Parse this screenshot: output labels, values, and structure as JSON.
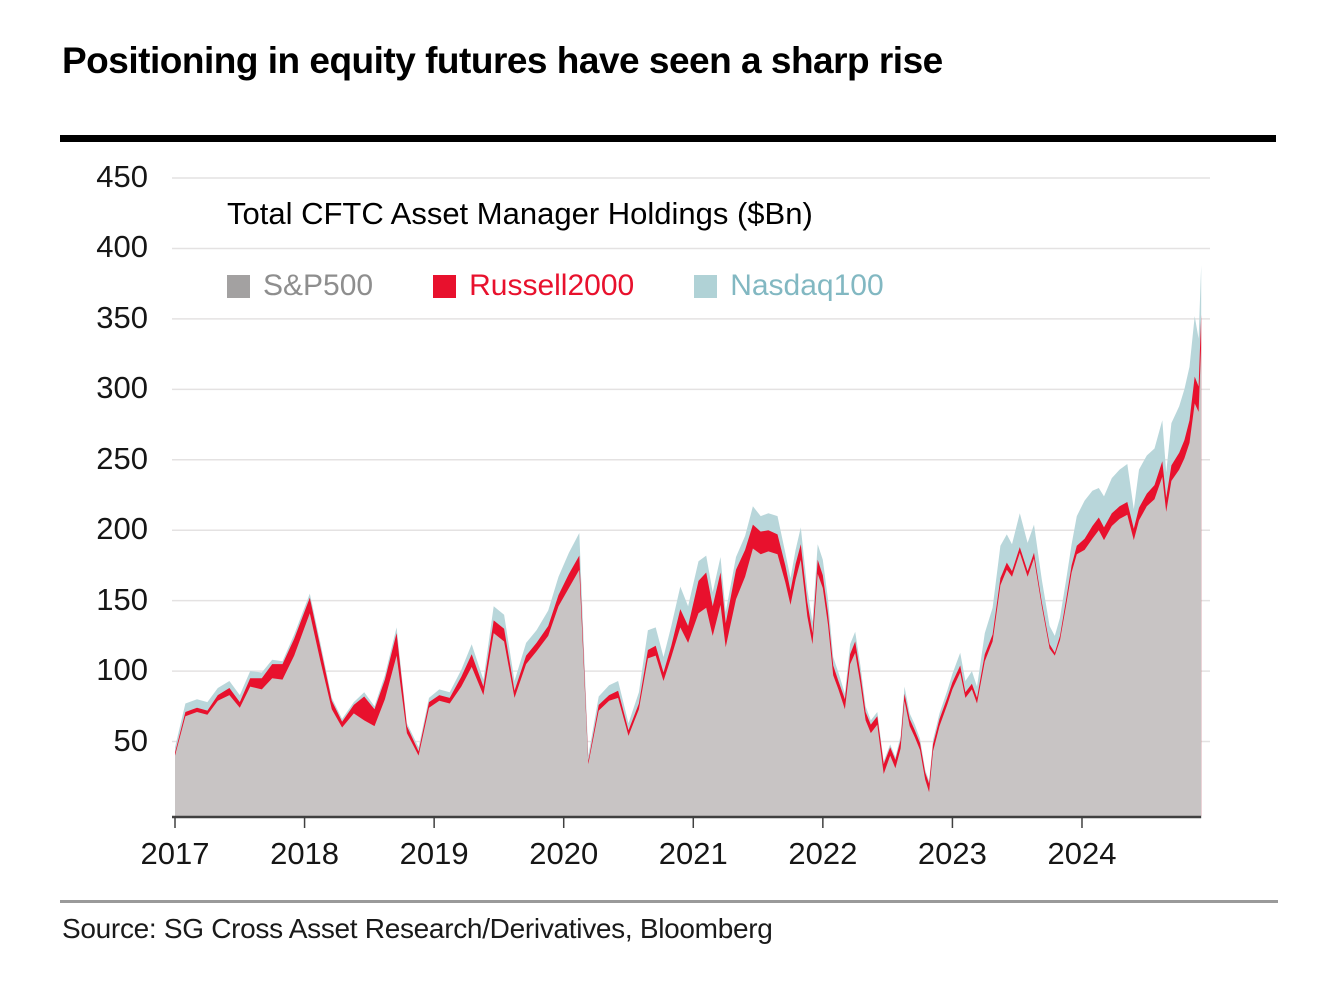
{
  "title": "Positioning in equity futures have seen a sharp rise",
  "source_note": "Source: SG Cross Asset Research/Derivatives, Bloomberg",
  "chart_data": {
    "type": "area",
    "stacked": true,
    "title": "Total CFTC Asset Manager Holdings ($Bn)",
    "unit": "$Bn",
    "grid": "horizontal",
    "legend_position": "top-left-inside",
    "ylim": [
      0,
      450
    ],
    "xlim": [
      2017.0,
      2025.0
    ],
    "y_ticks": [
      450,
      400,
      350,
      300,
      250,
      200,
      150,
      100,
      50
    ],
    "x_ticks": [
      2017,
      2018,
      2019,
      2020,
      2021,
      2022,
      2023,
      2024
    ],
    "x": [
      2017.0,
      2017.08,
      2017.17,
      2017.25,
      2017.33,
      2017.42,
      2017.5,
      2017.58,
      2017.67,
      2017.75,
      2017.83,
      2017.92,
      2018.04,
      2018.12,
      2018.21,
      2018.29,
      2018.38,
      2018.46,
      2018.54,
      2018.62,
      2018.71,
      2018.79,
      2018.88,
      2018.96,
      2019.04,
      2019.12,
      2019.21,
      2019.29,
      2019.38,
      2019.46,
      2019.54,
      2019.62,
      2019.71,
      2019.79,
      2019.88,
      2019.96,
      2020.04,
      2020.12,
      2020.19,
      2020.27,
      2020.35,
      2020.42,
      2020.5,
      2020.58,
      2020.65,
      2020.71,
      2020.77,
      2020.83,
      2020.9,
      2020.96,
      2021.04,
      2021.1,
      2021.15,
      2021.21,
      2021.25,
      2021.33,
      2021.4,
      2021.46,
      2021.52,
      2021.58,
      2021.65,
      2021.71,
      2021.75,
      2021.79,
      2021.83,
      2021.88,
      2021.92,
      2021.96,
      2022.0,
      2022.04,
      2022.08,
      2022.12,
      2022.17,
      2022.21,
      2022.25,
      2022.29,
      2022.33,
      2022.37,
      2022.42,
      2022.47,
      2022.52,
      2022.56,
      2022.6,
      2022.63,
      2022.67,
      2022.71,
      2022.75,
      2022.79,
      2022.82,
      2022.85,
      2022.9,
      2022.96,
      2023.0,
      2023.06,
      2023.1,
      2023.15,
      2023.19,
      2023.25,
      2023.31,
      2023.37,
      2023.42,
      2023.46,
      2023.52,
      2023.58,
      2023.63,
      2023.69,
      2023.75,
      2023.79,
      2023.83,
      2023.88,
      2023.92,
      2023.96,
      2024.02,
      2024.08,
      2024.13,
      2024.17,
      2024.23,
      2024.29,
      2024.35,
      2024.4,
      2024.44,
      2024.5,
      2024.56,
      2024.62,
      2024.65,
      2024.69,
      2024.75,
      2024.79,
      2024.83,
      2024.87,
      2024.9,
      2024.92
    ],
    "series": [
      {
        "name": "S&P500",
        "fill": "#c8c4c4",
        "swatch_color": "#a3a1a1",
        "label_color": "#8e8e8e",
        "values": [
          40,
          68,
          71,
          69,
          79,
          83,
          74,
          89,
          87,
          95,
          94,
          111,
          141,
          108,
          73,
          60,
          70,
          65,
          61,
          80,
          111,
          56,
          40,
          74,
          79,
          77,
          89,
          103,
          83,
          127,
          121,
          81,
          105,
          114,
          125,
          146,
          159,
          172,
          34,
          72,
          79,
          81,
          54,
          73,
          109,
          111,
          93,
          110,
          131,
          120,
          141,
          145,
          125,
          147,
          117,
          151,
          167,
          187,
          183,
          185,
          183,
          163,
          147,
          165,
          179,
          139,
          119,
          169,
          159,
          133,
          97,
          87,
          73,
          105,
          113,
          91,
          65,
          56,
          62,
          27,
          40,
          31,
          45,
          79,
          61,
          53,
          44,
          23,
          14,
          43,
          61,
          76,
          87,
          99,
          81,
          87,
          77,
          107,
          121,
          161,
          172,
          167,
          184,
          167,
          180,
          146,
          116,
          111,
          122,
          148,
          170,
          183,
          186,
          194,
          200,
          193,
          203,
          208,
          211,
          193,
          207,
          217,
          222,
          238,
          213,
          235,
          243,
          251,
          262,
          290,
          284,
          332
        ]
      },
      {
        "name": "Russell2000",
        "fill": "#e8112d",
        "swatch_color": "#e8112d",
        "label_color": "#e8112d",
        "values": [
          2,
          3,
          3,
          3,
          4,
          5,
          4,
          6,
          8,
          10,
          11,
          12,
          11,
          10,
          6,
          4,
          6,
          17,
          12,
          14,
          16,
          5,
          3,
          4,
          4,
          4,
          7,
          9,
          6,
          9,
          9,
          5,
          6,
          6,
          7,
          8,
          10,
          10,
          2,
          4,
          4,
          5,
          4,
          4,
          6,
          7,
          6,
          8,
          13,
          12,
          23,
          25,
          21,
          23,
          17,
          21,
          19,
          17,
          16,
          15,
          14,
          12,
          10,
          11,
          11,
          10,
          8,
          10,
          9,
          8,
          7,
          6,
          7,
          7,
          8,
          7,
          6,
          6,
          6,
          7,
          6,
          6,
          6,
          5,
          5,
          5,
          5,
          5,
          6,
          5,
          5,
          5,
          5,
          5,
          4,
          4,
          4,
          5,
          5,
          5,
          5,
          4,
          4,
          4,
          4,
          3,
          3,
          2,
          3,
          4,
          5,
          6,
          8,
          9,
          9,
          9,
          9,
          9,
          9,
          8,
          9,
          9,
          10,
          11,
          10,
          11,
          12,
          13,
          16,
          19,
          18,
          21
        ]
      },
      {
        "name": "Nasdaq100",
        "fill": "#b8d6da",
        "swatch_color": "#b0d2d6",
        "label_color": "#82b8c2",
        "values": [
          4,
          6,
          6,
          6,
          5,
          5,
          5,
          5,
          4,
          3,
          2,
          3,
          3,
          3,
          2,
          2,
          2,
          3,
          2,
          3,
          4,
          2,
          3,
          3,
          4,
          4,
          5,
          7,
          5,
          10,
          10,
          7,
          9,
          9,
          11,
          13,
          15,
          16,
          4,
          6,
          7,
          7,
          5,
          8,
          14,
          13,
          11,
          14,
          16,
          14,
          14,
          12,
          10,
          11,
          8,
          9,
          10,
          13,
          11,
          12,
          13,
          9,
          9,
          10,
          12,
          9,
          8,
          11,
          11,
          10,
          6,
          6,
          4,
          7,
          7,
          6,
          4,
          3,
          3,
          2,
          2,
          2,
          3,
          5,
          4,
          4,
          3,
          2,
          2,
          3,
          4,
          5,
          6,
          9,
          8,
          9,
          8,
          15,
          19,
          23,
          20,
          19,
          24,
          20,
          20,
          16,
          13,
          12,
          13,
          14,
          15,
          21,
          27,
          25,
          21,
          22,
          25,
          26,
          27,
          14,
          27,
          27,
          26,
          29,
          18,
          30,
          33,
          36,
          38,
          43,
          34,
          35
        ]
      }
    ]
  },
  "style_colors": {
    "top_rule": "#000000",
    "bottom_rule": "#9a9a9a",
    "axis_line": "#404040",
    "gridline": "#e4e2e2",
    "tick_label": "#161616"
  }
}
